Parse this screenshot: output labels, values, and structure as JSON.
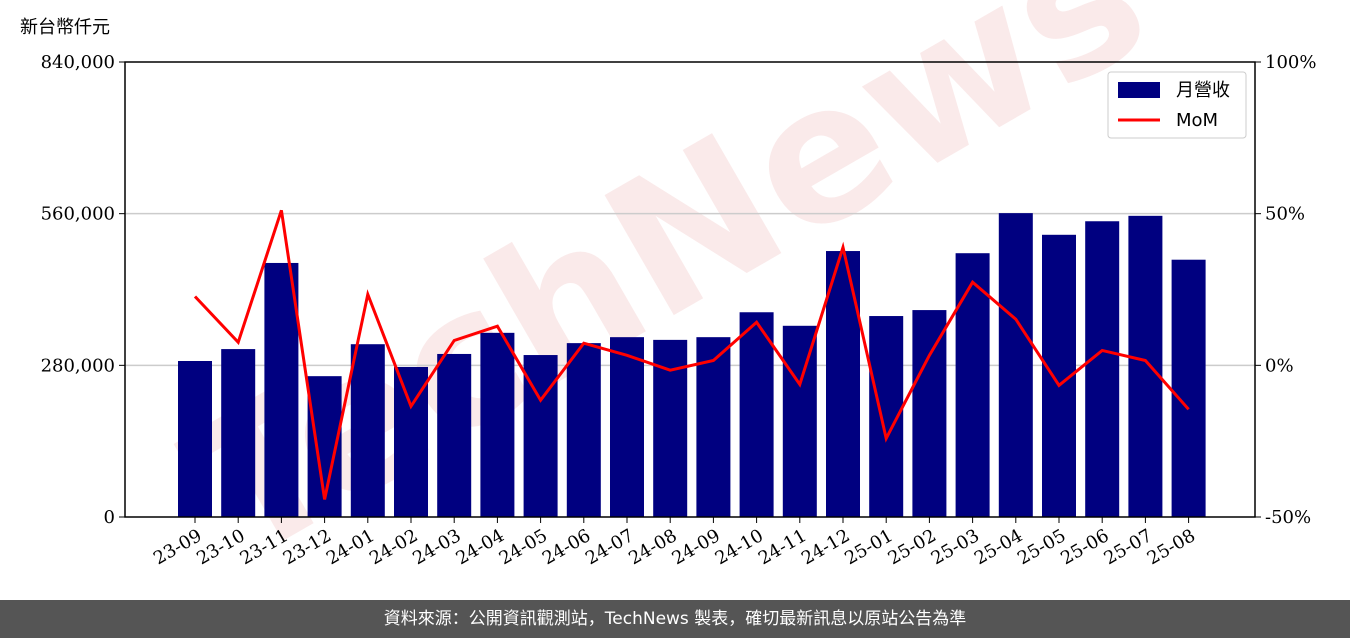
{
  "chart_data": {
    "type": "bar_line",
    "y_label": "新台幣仟元",
    "watermark": "TechNews",
    "categories": [
      "23-09",
      "23-10",
      "23-11",
      "23-12",
      "24-01",
      "24-02",
      "24-03",
      "24-04",
      "24-05",
      "24-06",
      "24-07",
      "24-08",
      "24-09",
      "24-10",
      "24-11",
      "24-12",
      "25-01",
      "25-02",
      "25-03",
      "25-04",
      "25-05",
      "25-06",
      "25-07",
      "25-08"
    ],
    "series": [
      {
        "name": "月營收",
        "color": "#000080",
        "type": "bar",
        "values": [
          288000,
          310000,
          469000,
          260000,
          319000,
          277000,
          301000,
          340000,
          299000,
          321000,
          332000,
          327000,
          332000,
          378000,
          353000,
          491000,
          371000,
          382000,
          487000,
          561000,
          521000,
          546000,
          556000,
          475000
        ]
      },
      {
        "name": "MoM",
        "color": "#ff0000",
        "type": "line",
        "axis": "y2",
        "values": [
          22.7,
          7.6,
          51.1,
          -44.2,
          23.4,
          -13.5,
          8.2,
          12.9,
          -11.5,
          7.3,
          3.3,
          -1.6,
          1.6,
          14.2,
          -6.3,
          38.9,
          -24.1,
          3.3,
          27.4,
          15.2,
          -6.6,
          4.9,
          1.6,
          -14.5
        ]
      }
    ],
    "ylim": [
      0,
      840000
    ],
    "yticks": [
      0,
      {
        "value": 280000,
        "label": "280,000"
      },
      {
        "value": 560000,
        "label": "560,000"
      },
      {
        "value": 840000,
        "label": "840,000"
      }
    ],
    "y2lim": [
      -50,
      100
    ],
    "y2ticks": [
      {
        "value": -50,
        "label": "-50%"
      },
      {
        "value": 0,
        "label": "0%"
      },
      {
        "value": 50,
        "label": "50%"
      },
      {
        "value": 100,
        "label": "100%"
      }
    ],
    "grid": true,
    "legend": "upper right",
    "source_note": "資料來源：公開資訊觀測站，TechNews 製表，確切最新訊息以原站公告為準"
  }
}
